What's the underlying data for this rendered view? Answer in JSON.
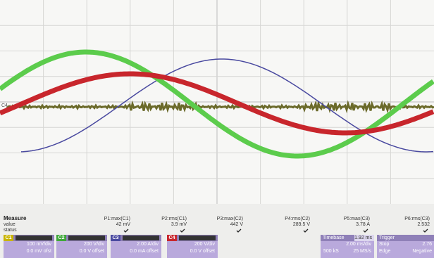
{
  "screen": {
    "marker": "C4",
    "measure": {
      "title": "Measure",
      "row_labels": [
        "value",
        "status"
      ],
      "items": [
        {
          "name": "P1:max(C1)",
          "value": "42 mV"
        },
        {
          "name": "P2:rms(C1)",
          "value": "3.9 mV"
        },
        {
          "name": "P3:max(C2)",
          "value": "442 V"
        },
        {
          "name": "P4:rms(C2)",
          "value": "289.5 V"
        },
        {
          "name": "P5:max(C3)",
          "value": "3.78 A"
        },
        {
          "name": "P6:rms(C3)",
          "value": "2.532"
        }
      ]
    },
    "channels": [
      {
        "tag": "C1",
        "scale": "100 mV/div",
        "offset": "0.0 mV ofst"
      },
      {
        "tag": "C2",
        "scale": "200 V/div",
        "offset": "0.0 V offset"
      },
      {
        "tag": "C3",
        "scale": "2.00 A/div",
        "offset": "0.0 mA offset"
      },
      {
        "tag": "C4",
        "scale": "200 V/div",
        "offset": "0.0 V offset"
      }
    ],
    "timebase": {
      "label": "Timebase",
      "delay": "1.92 ms",
      "scale": "2.00 ms/div",
      "samples": "500 kS",
      "rate": "25 MS/s"
    },
    "trigger": {
      "label": "Trigger",
      "mode": "Stop",
      "level": "2.76",
      "type": "Edge",
      "slope": "Negative"
    }
  }
}
